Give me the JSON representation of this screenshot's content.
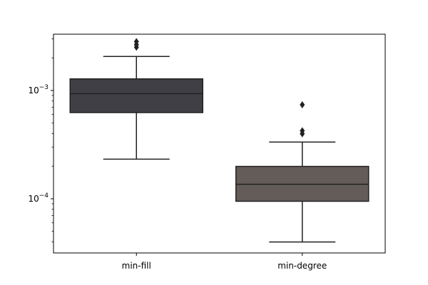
{
  "chart_data": {
    "type": "box",
    "title": "",
    "xlabel": "",
    "ylabel": "",
    "yscale": "log",
    "ylim": [
      3.16e-05,
      0.00331
    ],
    "y_major_ticks": [
      {
        "value": 0.0001,
        "base": "10",
        "exp": "−4"
      },
      {
        "value": 0.001,
        "base": "10",
        "exp": "−3"
      }
    ],
    "categories": [
      "min-fill",
      "min-degree"
    ],
    "boxes": [
      {
        "name": "min-fill",
        "color": "#3f3f45",
        "whisker_low": 0.000232,
        "q1": 0.000625,
        "median": 0.000935,
        "q3": 0.00128,
        "whisker_high": 0.00206,
        "outliers": [
          0.00251,
          0.00265,
          0.00283
        ]
      },
      {
        "name": "min-degree",
        "color": "#645c58",
        "whisker_low": 3.99e-05,
        "q1": 9.48e-05,
        "median": 0.000136,
        "q3": 0.000199,
        "whisker_high": 0.000334,
        "outliers": [
          0.000398,
          0.000425,
          0.000738
        ]
      }
    ],
    "grid": false,
    "legend": "none"
  }
}
